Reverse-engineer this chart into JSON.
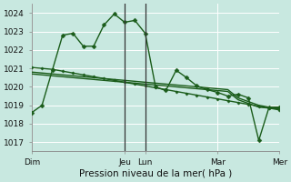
{
  "xlabel": "Pression niveau de la mer( hPa )",
  "bg_color": "#c8e8e0",
  "grid_color": "#aad4cc",
  "line_color": "#1a5c1a",
  "ylim": [
    1016.5,
    1024.5
  ],
  "yticks": [
    1017,
    1018,
    1019,
    1020,
    1021,
    1022,
    1023,
    1024
  ],
  "x_day_labels": [
    "Dim",
    "Jeu",
    "Lun",
    "Mar",
    "Mer"
  ],
  "x_day_positions": [
    0,
    9,
    11,
    18,
    24
  ],
  "xlim": [
    0,
    24
  ],
  "vline_positions": [
    9,
    11
  ],
  "line1_x": [
    0,
    1,
    2,
    3,
    4,
    5,
    6,
    7,
    8,
    9,
    10,
    11,
    12,
    13,
    14,
    15,
    16,
    17,
    18,
    19,
    20,
    21,
    22,
    23,
    24
  ],
  "line1_y": [
    1018.6,
    1019.0,
    1020.9,
    1022.8,
    1022.9,
    1022.2,
    1022.2,
    1023.35,
    1023.95,
    1023.5,
    1023.6,
    1022.9,
    1020.0,
    1019.8,
    1020.9,
    1020.5,
    1020.05,
    1019.85,
    1019.7,
    1019.5,
    1019.6,
    1019.4,
    1017.1,
    1018.9,
    1018.9
  ],
  "line2_x": [
    0,
    1,
    2,
    3,
    4,
    5,
    6,
    7,
    8,
    9,
    10,
    11,
    12,
    13,
    14,
    15,
    16,
    17,
    18,
    19,
    20,
    21,
    22,
    23,
    24
  ],
  "line2_y": [
    1021.05,
    1021.0,
    1020.95,
    1020.85,
    1020.75,
    1020.65,
    1020.55,
    1020.45,
    1020.35,
    1020.25,
    1020.15,
    1020.05,
    1019.95,
    1019.85,
    1019.75,
    1019.65,
    1019.55,
    1019.45,
    1019.35,
    1019.25,
    1019.15,
    1019.05,
    1018.95,
    1018.85,
    1018.75
  ],
  "line3_x": [
    0,
    1,
    2,
    3,
    4,
    5,
    6,
    7,
    8,
    9,
    10,
    11,
    12,
    13,
    14,
    15,
    16,
    17,
    18,
    19,
    20,
    21,
    22,
    23,
    24
  ],
  "line3_y": [
    1020.7,
    1020.65,
    1020.6,
    1020.55,
    1020.5,
    1020.45,
    1020.4,
    1020.35,
    1020.3,
    1020.25,
    1020.2,
    1020.15,
    1020.1,
    1020.05,
    1020.0,
    1019.95,
    1019.9,
    1019.85,
    1019.8,
    1019.75,
    1019.3,
    1019.1,
    1018.9,
    1018.85,
    1018.8
  ],
  "line4_x": [
    0,
    1,
    2,
    3,
    4,
    5,
    6,
    7,
    8,
    9,
    10,
    11,
    12,
    13,
    14,
    15,
    16,
    17,
    18,
    19,
    20,
    21,
    22,
    23,
    24
  ],
  "line4_y": [
    1020.8,
    1020.75,
    1020.7,
    1020.65,
    1020.6,
    1020.55,
    1020.5,
    1020.45,
    1020.4,
    1020.35,
    1020.3,
    1020.25,
    1020.2,
    1020.15,
    1020.1,
    1020.05,
    1020.0,
    1019.95,
    1019.9,
    1019.85,
    1019.4,
    1019.2,
    1019.0,
    1018.9,
    1018.85
  ],
  "marker_size": 2.5,
  "line_width": 1.0
}
